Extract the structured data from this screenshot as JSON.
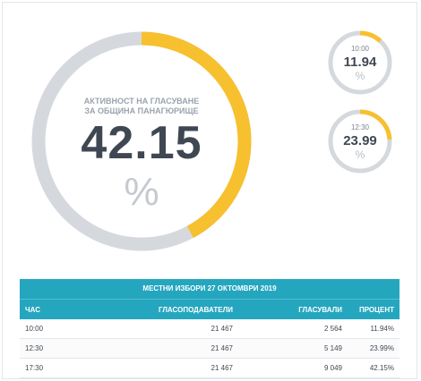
{
  "colors": {
    "accent": "#f7c02e",
    "track": "#d5d9de",
    "header": "#25a6bf"
  },
  "main_gauge": {
    "label": "АКТИВНОСТ НА ГЛАСУВАНЕ ЗА ОБЩИНА ПАНАГЮРИЩЕ",
    "value": "42.15",
    "unit": "%",
    "fraction": 0.4215
  },
  "small_gauges": [
    {
      "time": "10:00",
      "value": "11.94",
      "unit": "%",
      "fraction": 0.1194
    },
    {
      "time": "12:30",
      "value": "23.99",
      "unit": "%",
      "fraction": 0.2399
    }
  ],
  "table": {
    "caption": "МЕСТНИ ИЗБОРИ 27 ОКТОМВРИ 2019",
    "headers": [
      "ЧАС",
      "ГЛАСОПОДАВАТЕЛИ",
      "ГЛАСУВАЛИ",
      "ПРОЦЕНТ"
    ],
    "rows": [
      [
        "10:00",
        "21 467",
        "2 564",
        "11.94%"
      ],
      [
        "12:30",
        "21 467",
        "5 149",
        "23.99%"
      ],
      [
        "17:30",
        "21 467",
        "9 049",
        "42.15%"
      ]
    ]
  }
}
